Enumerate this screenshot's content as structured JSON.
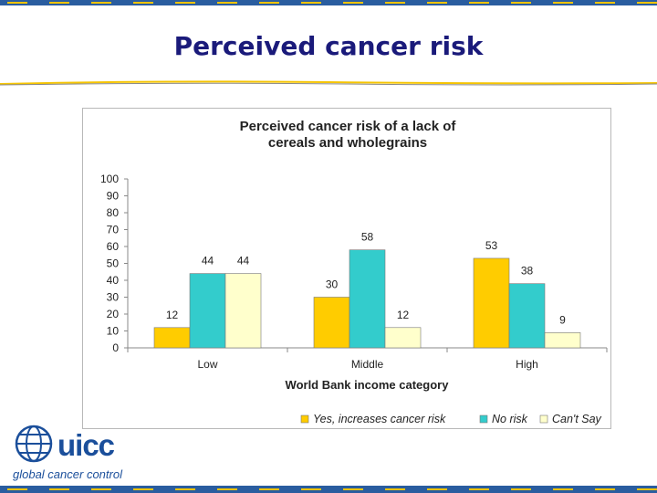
{
  "slide": {
    "title": "Perceived cancer risk",
    "logo_text": "uicc",
    "logo_tagline": "global cancer control"
  },
  "colors": {
    "title": "#1a1a7a",
    "band": "#2a5d9f",
    "band_dash": "#f5c400",
    "series_yes": "#ffcc00",
    "series_no": "#33cccc",
    "series_cant": "#ffffcc"
  },
  "chart_data": {
    "type": "bar",
    "title": "Perceived cancer risk of a lack of cereals and wholegrains",
    "xlabel": "World Bank income category",
    "ylabel": "",
    "ylim": [
      0,
      100
    ],
    "yticks": [
      0,
      10,
      20,
      30,
      40,
      50,
      60,
      70,
      80,
      90,
      100
    ],
    "categories": [
      "Low",
      "Middle",
      "High"
    ],
    "series": [
      {
        "name": "Yes, increases cancer risk",
        "values": [
          12,
          30,
          53
        ],
        "color": "#ffcc00"
      },
      {
        "name": "No risk",
        "values": [
          44,
          58,
          38
        ],
        "color": "#33cccc"
      },
      {
        "name": "Can't Say",
        "values": [
          44,
          12,
          9
        ],
        "color": "#ffffcc"
      }
    ],
    "legend": "bottom",
    "grid": false
  }
}
